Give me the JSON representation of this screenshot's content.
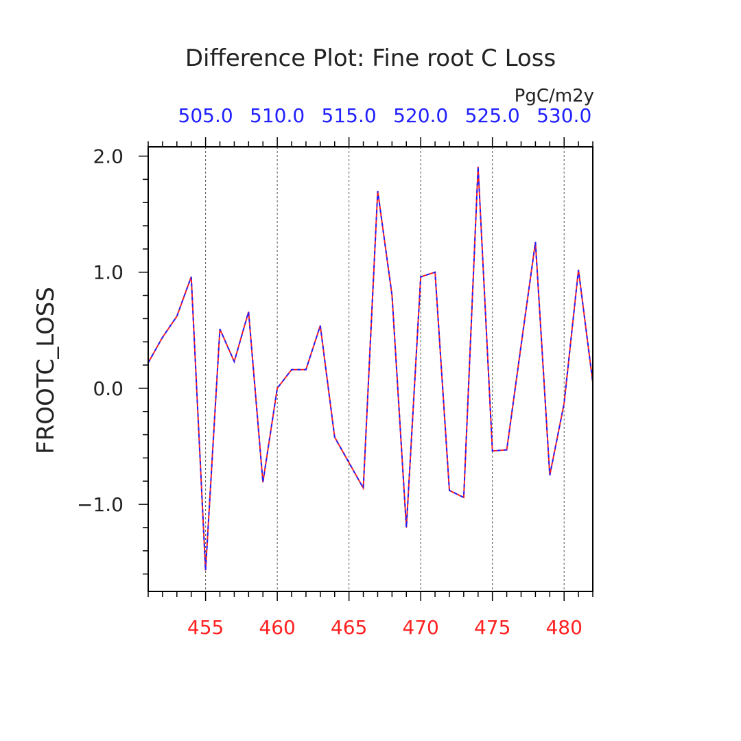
{
  "chart_data": {
    "type": "line",
    "title": "Difference Plot: Fine root C Loss",
    "units": "PgC/m2y",
    "ylabel": "FROOTC_LOSS",
    "x_bottom": {
      "range": [
        451,
        482
      ],
      "ticks": [
        455,
        460,
        465,
        470,
        475,
        480
      ],
      "tick_labels": [
        "455",
        "460",
        "465",
        "470",
        "475",
        "480"
      ],
      "color": "#ff2020"
    },
    "x_top": {
      "offset_from_bottom": 50,
      "ticks": [
        505,
        510,
        515,
        520,
        525,
        530
      ],
      "tick_labels": [
        "505.0",
        "510.0",
        "515.0",
        "520.0",
        "525.0",
        "530.0"
      ],
      "color": "#2020ff"
    },
    "ylim": [
      -1.75,
      2.08
    ],
    "y_ticks": [
      -1.0,
      0.0,
      1.0,
      2.0
    ],
    "y_tick_labels": [
      "−1.0",
      "0.0",
      "1.0",
      "2.0"
    ],
    "grid": "vertical dashed at major x ticks",
    "x": [
      451,
      452,
      453,
      454,
      455,
      456,
      457,
      458,
      459,
      460,
      461,
      462,
      463,
      464,
      465,
      466,
      467,
      468,
      469,
      470,
      471,
      472,
      473,
      474,
      475,
      476,
      477,
      478,
      479,
      480,
      481,
      482
    ],
    "series": [
      {
        "color": "#ff2020",
        "values": [
          0.22,
          0.44,
          0.62,
          0.96,
          -1.57,
          0.51,
          0.23,
          0.66,
          -0.81,
          0.0,
          0.16,
          0.16,
          0.54,
          -0.42,
          -0.64,
          -0.86,
          1.7,
          0.8,
          -1.2,
          0.96,
          1.0,
          -0.88,
          -0.94,
          1.91,
          -0.54,
          -0.53,
          0.37,
          1.26,
          -0.75,
          -0.13,
          1.02,
          0.05
        ]
      },
      {
        "color": "#2020ff",
        "values": [
          0.22,
          0.44,
          0.62,
          0.96,
          -1.57,
          0.51,
          0.23,
          0.66,
          -0.81,
          0.0,
          0.16,
          0.16,
          0.54,
          -0.42,
          -0.64,
          -0.86,
          1.7,
          0.8,
          -1.2,
          0.96,
          1.0,
          -0.88,
          -0.94,
          1.91,
          -0.54,
          -0.53,
          0.37,
          1.26,
          -0.75,
          -0.13,
          1.02,
          0.05
        ]
      }
    ]
  }
}
